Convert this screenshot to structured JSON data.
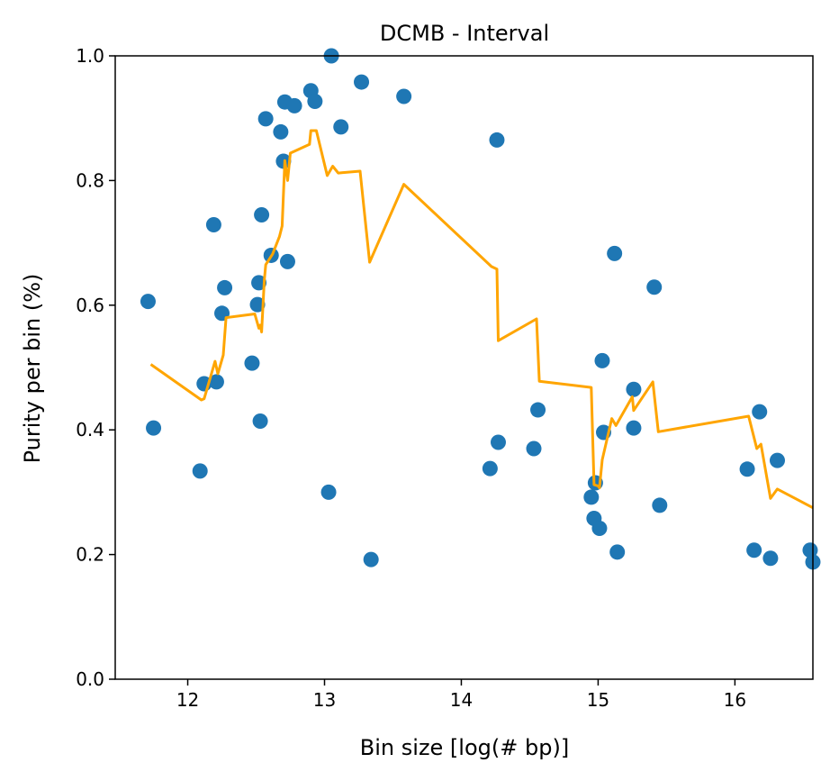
{
  "chart_data": {
    "type": "scatter",
    "title": "DCMB - Interval",
    "xlabel": "Bin size [log(# bp)]",
    "ylabel": "Purity per bin (%)",
    "xlim": [
      11.47,
      16.57
    ],
    "ylim": [
      0.0,
      1.0
    ],
    "xticks": [
      12,
      13,
      14,
      15,
      16
    ],
    "yticks": [
      0.0,
      0.2,
      0.4,
      0.6,
      0.8,
      1.0
    ],
    "ytick_labels": [
      "0.0",
      "0.2",
      "0.4",
      "0.6",
      "0.8",
      "1.0"
    ],
    "grid": false,
    "colors": {
      "points": "#1f77b4",
      "line": "#ffa500"
    },
    "series": [
      {
        "kind": "scatter",
        "points": [
          [
            11.71,
            0.606
          ],
          [
            11.75,
            0.403
          ],
          [
            12.09,
            0.334
          ],
          [
            12.12,
            0.474
          ],
          [
            12.19,
            0.729
          ],
          [
            12.21,
            0.477
          ],
          [
            12.25,
            0.587
          ],
          [
            12.27,
            0.628
          ],
          [
            12.47,
            0.507
          ],
          [
            12.51,
            0.601
          ],
          [
            12.52,
            0.636
          ],
          [
            12.53,
            0.414
          ],
          [
            12.54,
            0.745
          ],
          [
            12.57,
            0.899
          ],
          [
            12.61,
            0.68
          ],
          [
            12.68,
            0.878
          ],
          [
            12.7,
            0.831
          ],
          [
            12.71,
            0.926
          ],
          [
            12.73,
            0.67
          ],
          [
            12.78,
            0.92
          ],
          [
            12.9,
            0.944
          ],
          [
            12.93,
            0.927
          ],
          [
            13.03,
            0.3
          ],
          [
            13.05,
            1.0
          ],
          [
            13.12,
            0.886
          ],
          [
            13.27,
            0.958
          ],
          [
            13.34,
            0.192
          ],
          [
            13.58,
            0.935
          ],
          [
            14.21,
            0.338
          ],
          [
            14.26,
            0.865
          ],
          [
            14.27,
            0.38
          ],
          [
            14.53,
            0.37
          ],
          [
            14.56,
            0.432
          ],
          [
            14.95,
            0.292
          ],
          [
            14.97,
            0.258
          ],
          [
            14.98,
            0.315
          ],
          [
            15.01,
            0.242
          ],
          [
            15.03,
            0.511
          ],
          [
            15.04,
            0.396
          ],
          [
            15.12,
            0.683
          ],
          [
            15.14,
            0.204
          ],
          [
            15.26,
            0.465
          ],
          [
            15.26,
            0.403
          ],
          [
            15.41,
            0.629
          ],
          [
            15.45,
            0.279
          ],
          [
            16.09,
            0.337
          ],
          [
            16.14,
            0.207
          ],
          [
            16.18,
            0.429
          ],
          [
            16.26,
            0.194
          ],
          [
            16.31,
            0.351
          ],
          [
            16.55,
            0.207
          ],
          [
            16.57,
            0.188
          ]
        ]
      },
      {
        "kind": "line",
        "points": [
          [
            11.73,
            0.505
          ],
          [
            12.1,
            0.448
          ],
          [
            12.12,
            0.45
          ],
          [
            12.2,
            0.51
          ],
          [
            12.22,
            0.49
          ],
          [
            12.26,
            0.52
          ],
          [
            12.28,
            0.58
          ],
          [
            12.49,
            0.586
          ],
          [
            12.52,
            0.563
          ],
          [
            12.53,
            0.568
          ],
          [
            12.54,
            0.557
          ],
          [
            12.56,
            0.64
          ],
          [
            12.57,
            0.665
          ],
          [
            12.62,
            0.682
          ],
          [
            12.67,
            0.71
          ],
          [
            12.69,
            0.727
          ],
          [
            12.71,
            0.832
          ],
          [
            12.73,
            0.8
          ],
          [
            12.75,
            0.844
          ],
          [
            12.89,
            0.858
          ],
          [
            12.9,
            0.88
          ],
          [
            12.94,
            0.88
          ],
          [
            13.02,
            0.808
          ],
          [
            13.06,
            0.823
          ],
          [
            13.1,
            0.812
          ],
          [
            13.26,
            0.815
          ],
          [
            13.33,
            0.669
          ],
          [
            13.58,
            0.794
          ],
          [
            14.22,
            0.662
          ],
          [
            14.26,
            0.658
          ],
          [
            14.27,
            0.543
          ],
          [
            14.55,
            0.578
          ],
          [
            14.57,
            0.478
          ],
          [
            14.95,
            0.468
          ],
          [
            14.97,
            0.312
          ],
          [
            15.0,
            0.31
          ],
          [
            15.01,
            0.307
          ],
          [
            15.03,
            0.352
          ],
          [
            15.1,
            0.418
          ],
          [
            15.13,
            0.407
          ],
          [
            15.25,
            0.453
          ],
          [
            15.26,
            0.431
          ],
          [
            15.4,
            0.477
          ],
          [
            15.44,
            0.397
          ],
          [
            16.1,
            0.422
          ],
          [
            16.16,
            0.37
          ],
          [
            16.19,
            0.377
          ],
          [
            16.26,
            0.29
          ],
          [
            16.31,
            0.305
          ],
          [
            16.57,
            0.275
          ]
        ]
      }
    ]
  }
}
